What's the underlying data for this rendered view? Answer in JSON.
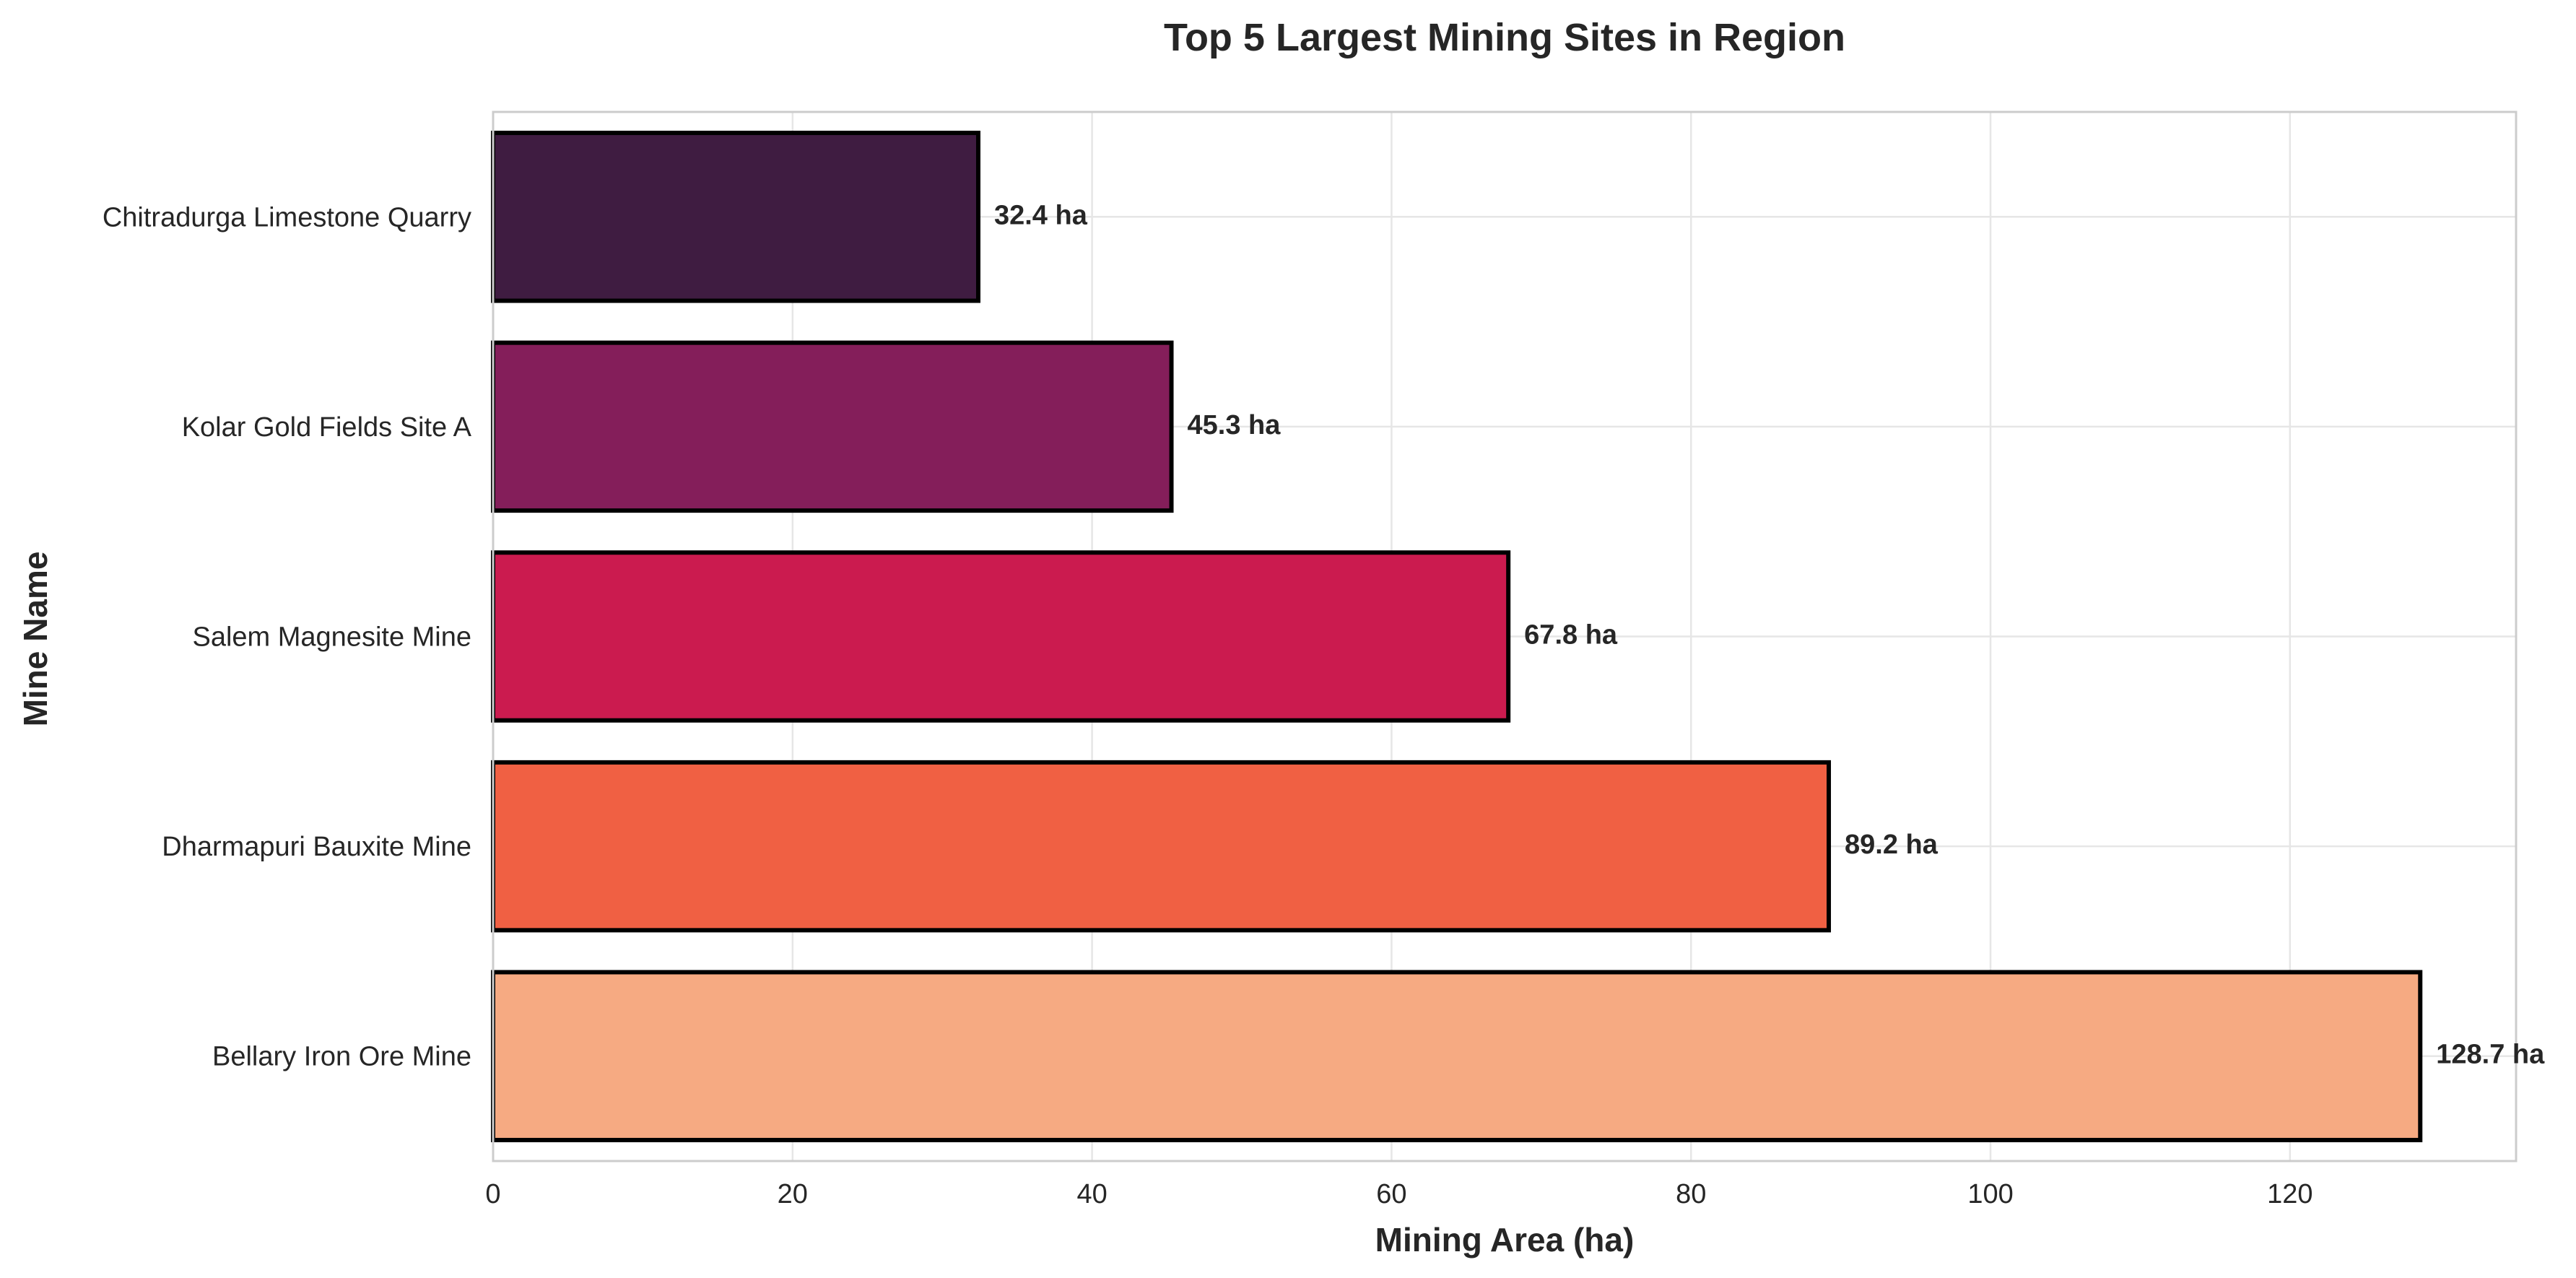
{
  "chart_data": {
    "type": "bar",
    "orientation": "horizontal",
    "title": "Top 5 Largest Mining Sites in Region",
    "xlabel": "Mining Area (ha)",
    "ylabel": "Mine Name",
    "xlim": [
      0,
      135.1
    ],
    "xticks": [
      0,
      20,
      40,
      60,
      80,
      100,
      120
    ],
    "grid": true,
    "categories": [
      "Chitradurga Limestone Quarry",
      "Kolar Gold Fields Site A",
      "Salem Magnesite Mine",
      "Dharmapuri Bauxite Mine",
      "Bellary Iron Ore Mine"
    ],
    "values": [
      32.4,
      45.3,
      67.8,
      89.2,
      128.7
    ],
    "value_labels": [
      "32.4 ha",
      "45.3 ha",
      "67.8 ha",
      "89.2 ha",
      "128.7 ha"
    ],
    "colors": [
      "#3f1c41",
      "#841e5a",
      "#cb1b4f",
      "#f06043",
      "#f6aa82"
    ]
  }
}
